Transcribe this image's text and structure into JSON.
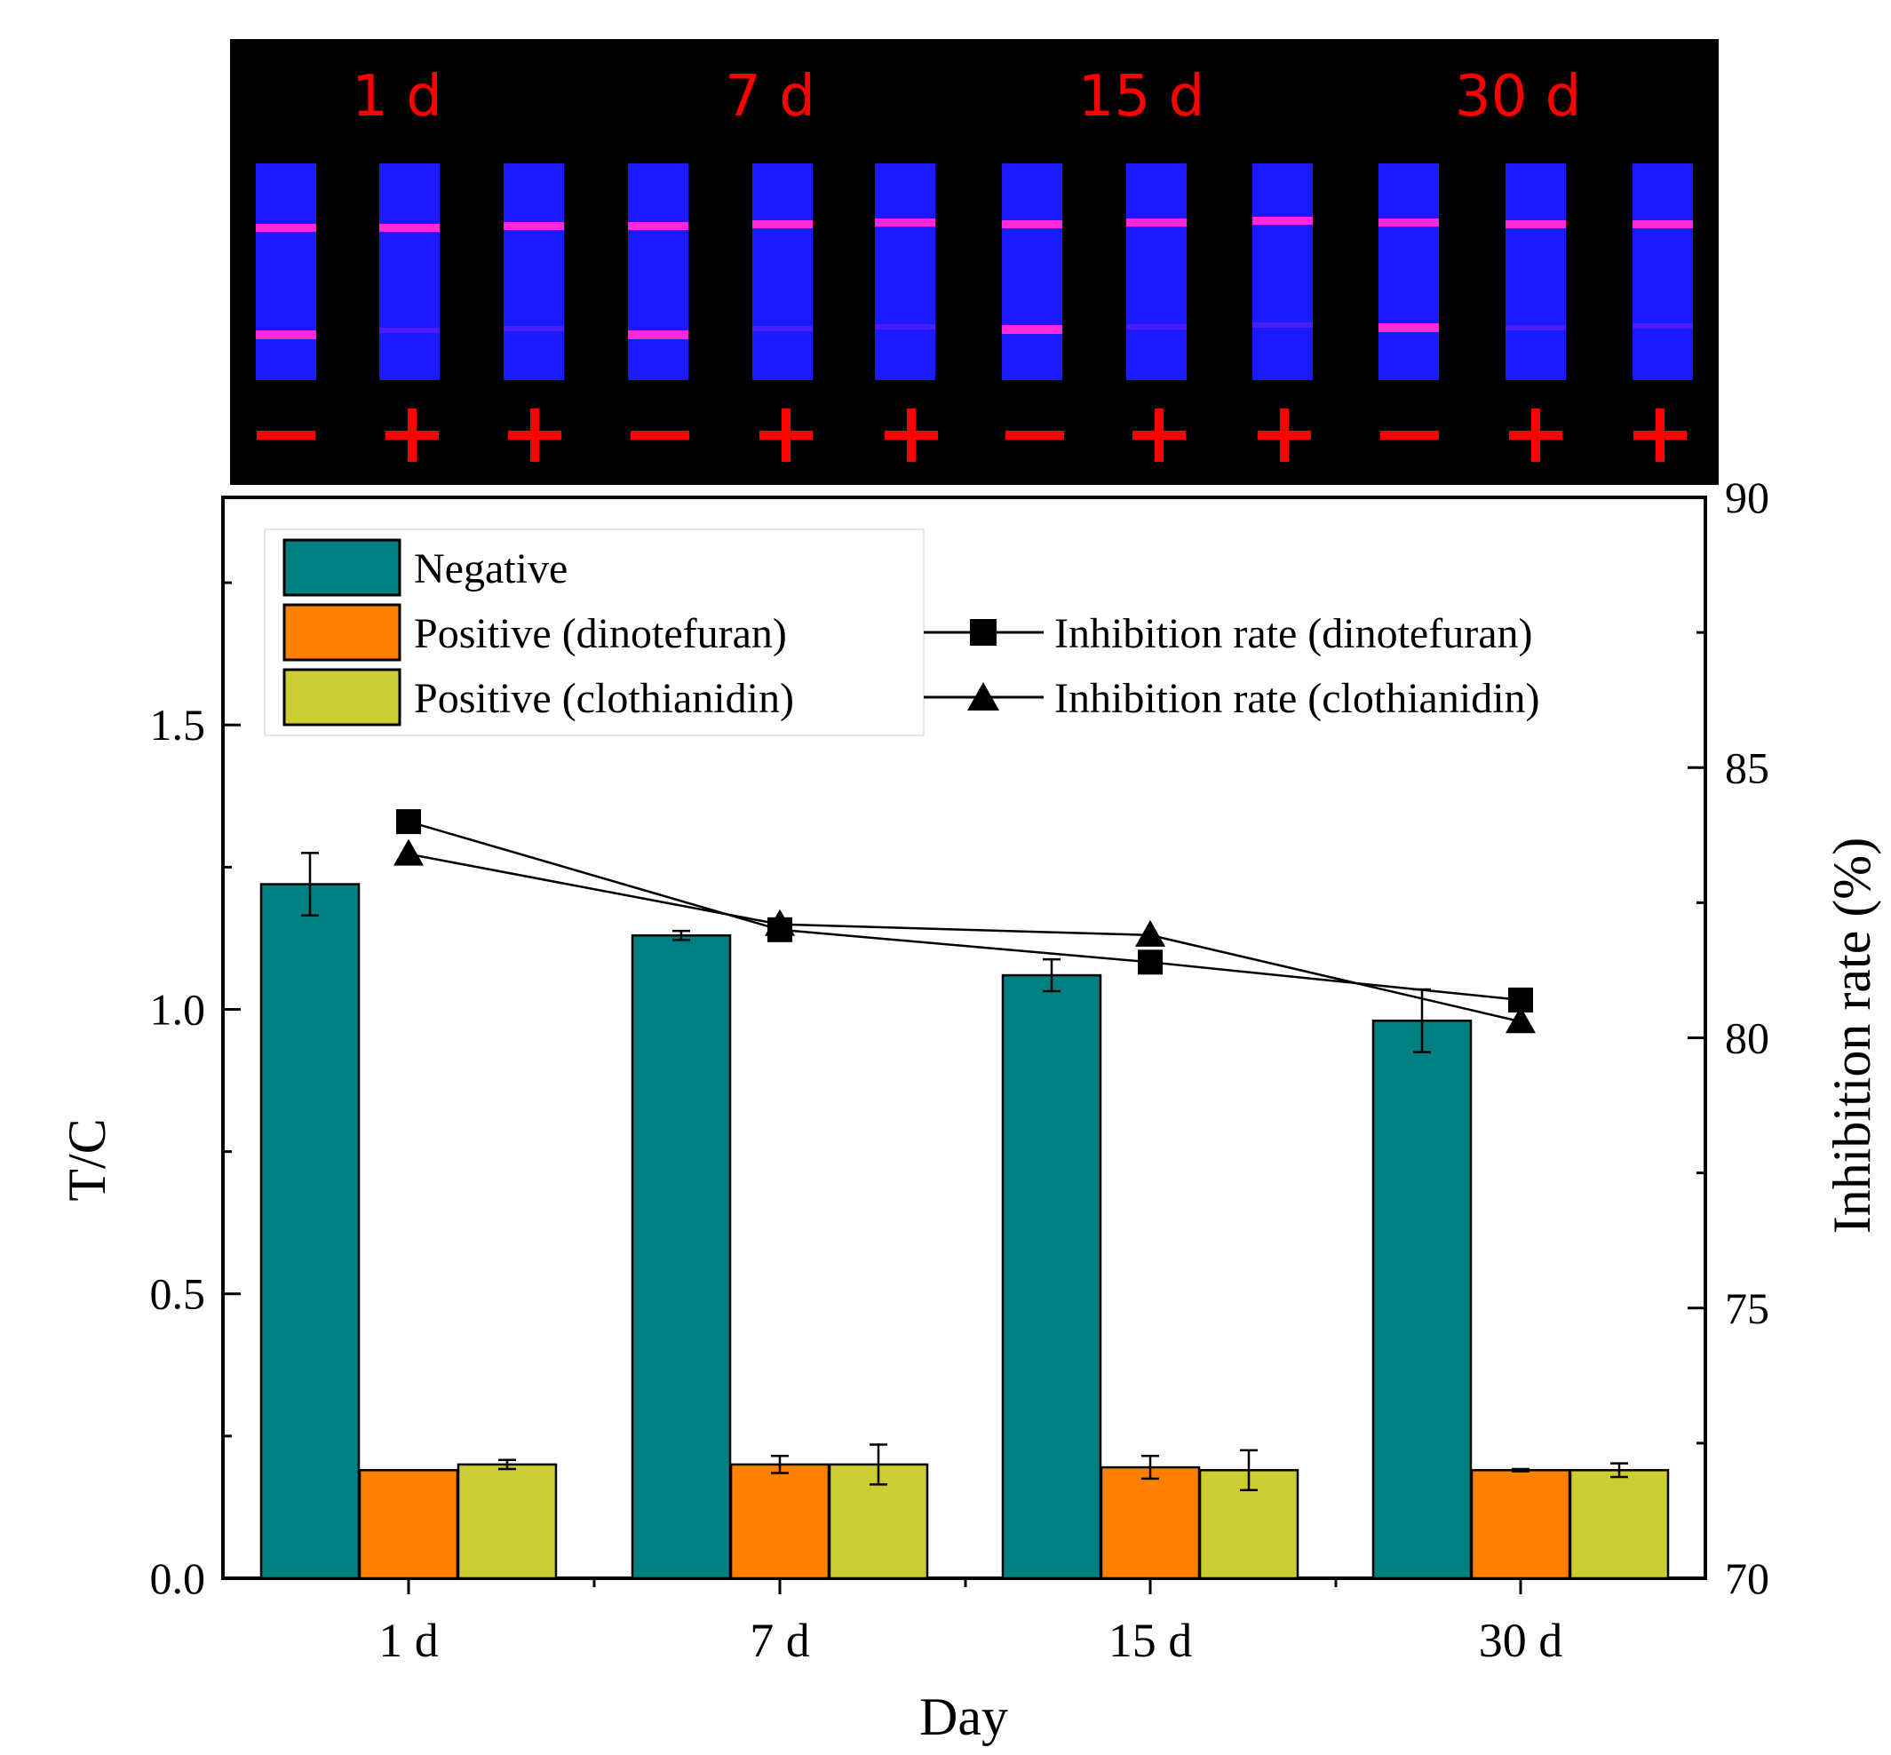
{
  "photo_panel": {
    "day_labels": [
      "1 d",
      "7 d",
      "15 d",
      "30 d"
    ],
    "strip_signs": [
      "−",
      "+",
      "+",
      "−",
      "+",
      "+",
      "−",
      "+",
      "+",
      "−",
      "+",
      "+"
    ],
    "label_color": "#ff0000",
    "background_color": "#000000",
    "strip_color": "#1a1aff",
    "band_color": "#ff2ad6"
  },
  "chart_data": {
    "type": "bar",
    "title": "",
    "xlabel": "Day",
    "ylabel": "T/C",
    "y2label": "Inhibition rate (%)",
    "categories": [
      "1 d",
      "7 d",
      "15 d",
      "30 d"
    ],
    "ylim": [
      0,
      1.9
    ],
    "yticks": [
      0.0,
      0.5,
      1.0,
      1.5
    ],
    "ytick_labels": [
      "0.0",
      "0.5",
      "1.0",
      "1.5"
    ],
    "y2lim": [
      70,
      90
    ],
    "y2ticks": [
      70,
      75,
      80,
      85,
      90
    ],
    "y2tick_labels": [
      "70",
      "75",
      "80",
      "85",
      "90"
    ],
    "series": [
      {
        "name": "Negative",
        "color": "#008080",
        "values": [
          1.22,
          1.13,
          1.06,
          0.98
        ],
        "errors": [
          0.055,
          0.008,
          0.028,
          0.055
        ]
      },
      {
        "name": "Positive (dinotefuran)",
        "color": "#ff7f00",
        "values": [
          0.19,
          0.2,
          0.195,
          0.19
        ],
        "errors": [
          0.0,
          0.015,
          0.02,
          0.002
        ]
      },
      {
        "name": "Positive (clothianidin)",
        "color": "#cccc33",
        "values": [
          0.2,
          0.2,
          0.19,
          0.19
        ],
        "errors": [
          0.008,
          0.035,
          0.035,
          0.012
        ]
      }
    ],
    "lines": [
      {
        "name": "Inhibition rate (dinotefuran)",
        "marker": "square",
        "values": [
          84.0,
          82.0,
          81.4,
          80.7
        ]
      },
      {
        "name": "Inhibition rate (clothianidin)",
        "marker": "triangle",
        "values": [
          83.4,
          82.1,
          81.9,
          80.3
        ]
      }
    ]
  }
}
